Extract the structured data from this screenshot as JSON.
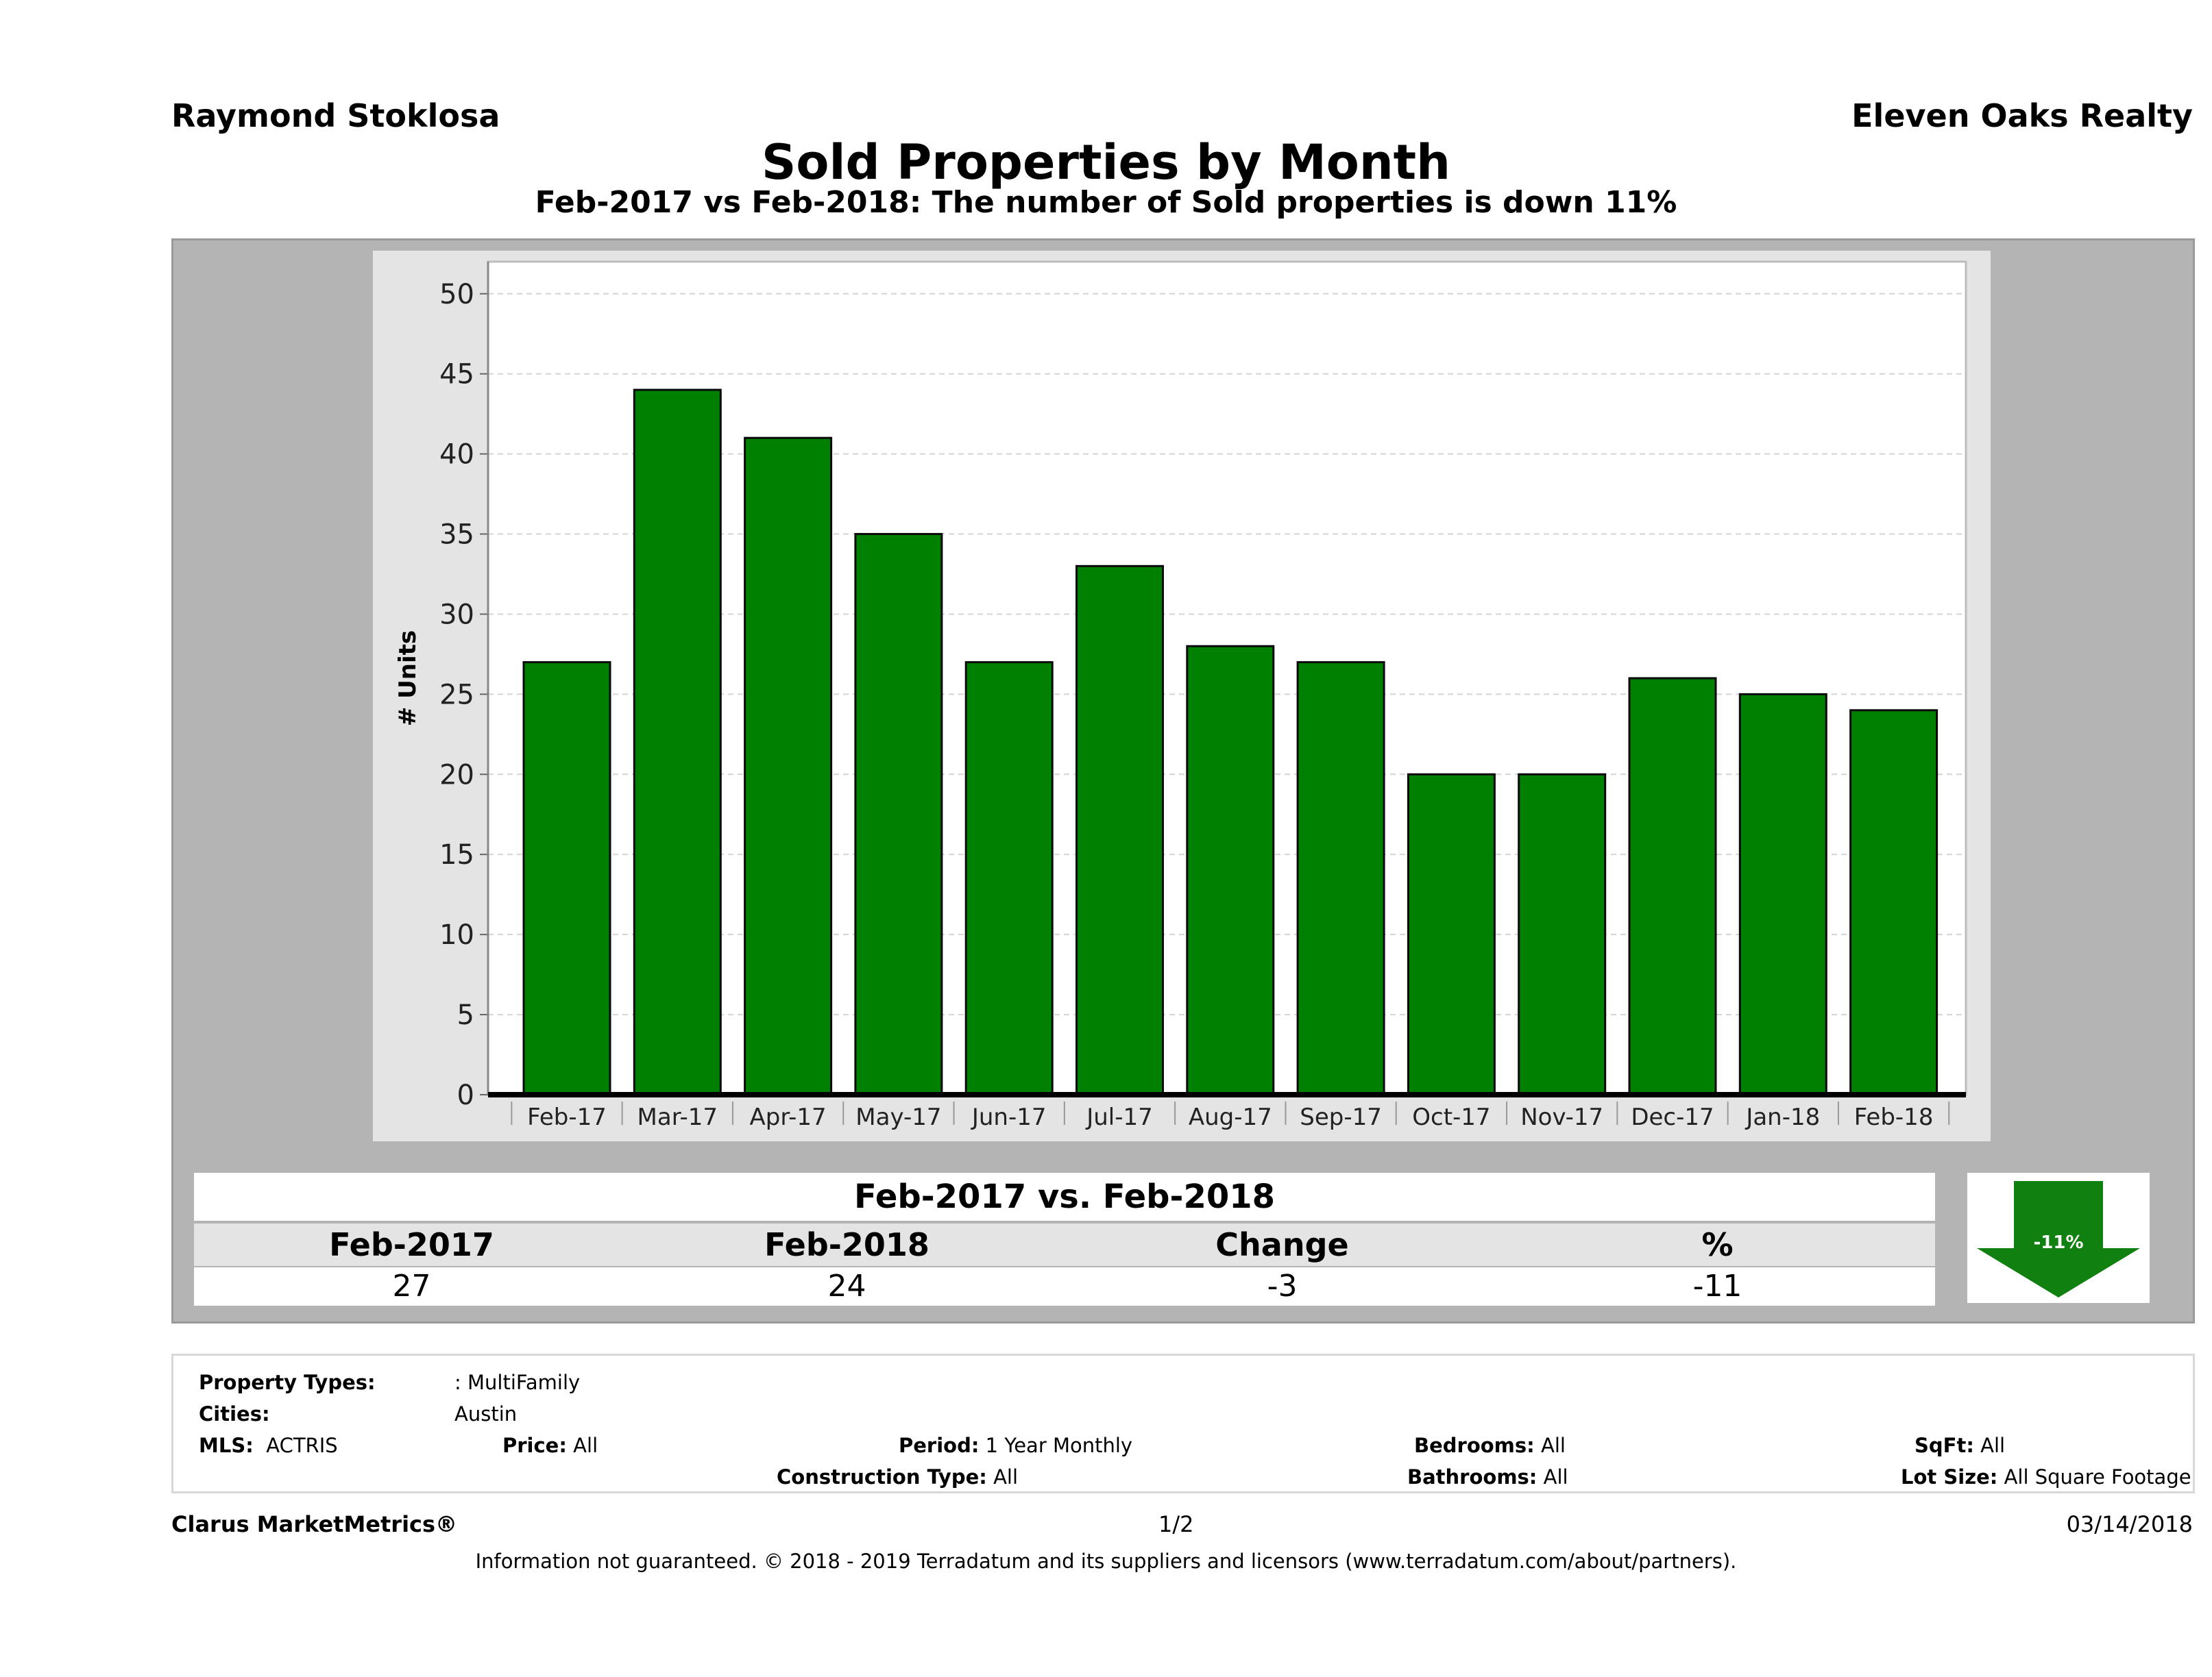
{
  "header": {
    "agent": "Raymond Stoklosa",
    "brokerage": "Eleven Oaks Realty",
    "title": "Sold Properties by Month",
    "subtitle": "Feb-2017 vs Feb-2018: The number of Sold  properties is down 11%"
  },
  "chart_data": {
    "type": "bar",
    "categories": [
      "Feb-17",
      "Mar-17",
      "Apr-17",
      "May-17",
      "Jun-17",
      "Jul-17",
      "Aug-17",
      "Sep-17",
      "Oct-17",
      "Nov-17",
      "Dec-17",
      "Jan-18",
      "Feb-18"
    ],
    "values": [
      27,
      44,
      41,
      35,
      27,
      33,
      28,
      27,
      20,
      20,
      26,
      25,
      24
    ],
    "ylabel": "# Units",
    "ylim": [
      0,
      52
    ],
    "yticks": [
      0,
      5,
      10,
      15,
      20,
      25,
      30,
      35,
      40,
      45,
      50
    ],
    "grid": true,
    "bar_color": "#008000"
  },
  "comparison": {
    "title": "Feb-2017 vs. Feb-2018",
    "headers": [
      "Feb-2017",
      "Feb-2018",
      "Change",
      "%"
    ],
    "values": [
      "27",
      "24",
      "-3",
      "-11"
    ],
    "badge": "-11%"
  },
  "filters": {
    "property_types_label": "Property Types:",
    "property_types_value": ": MultiFamily",
    "cities_label": "Cities:",
    "cities_value": "Austin",
    "mls_label": "MLS:",
    "mls_value": "ACTRIS",
    "price_label": "Price:",
    "price_value": "All",
    "period_label": "Period:",
    "period_value": "1 Year Monthly",
    "construction_label": "Construction Type:",
    "construction_value": "All",
    "bedrooms_label": "Bedrooms:",
    "bedrooms_value": "All",
    "bathrooms_label": "Bathrooms:",
    "bathrooms_value": "All",
    "sqft_label": "SqFt:",
    "sqft_value": "All",
    "lotsize_label": "Lot Size:",
    "lotsize_value": "All Square Footage"
  },
  "footer": {
    "brand": "Clarus MarketMetrics®",
    "page": "1/2",
    "date": "03/14/2018",
    "disclaimer": "Information not guaranteed. © 2018 - 2019 Terradatum and its suppliers and licensors (www.terradatum.com/about/partners)."
  }
}
